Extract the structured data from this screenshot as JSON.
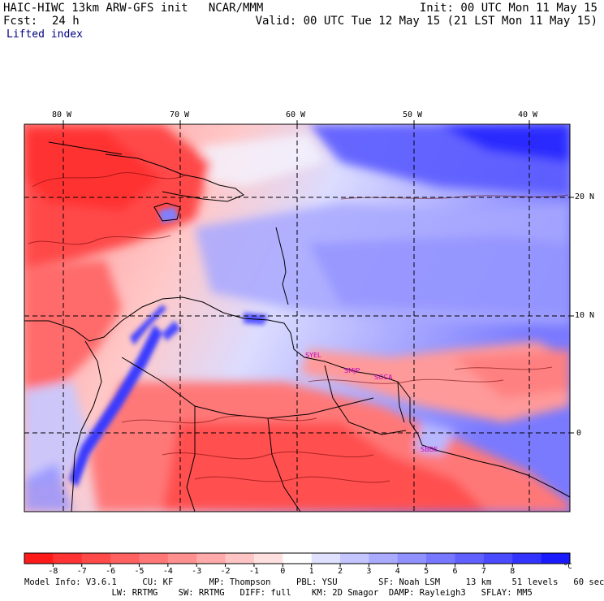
{
  "header": {
    "title_left": "HAIC-HIWC 13km ARW-GFS init   NCAR/MMM",
    "init": "Init: 00 UTC Mon 11 May 15",
    "fcst_label": "Fcst:",
    "fcst_value": "24 h",
    "valid": "Valid: 00 UTC Tue 12 May 15 (21 LST Mon 11 May 15)",
    "field": "Lifted index"
  },
  "map": {
    "longitude_labels": [
      "80 W",
      "70 W",
      "60 W",
      "50 W",
      "40 W"
    ],
    "latitude_labels": [
      "20 N",
      "10 N",
      "0"
    ],
    "stations": [
      "SYEL",
      "SMJP",
      "SOCA",
      "SBBE"
    ]
  },
  "colorbar": {
    "tick_labels": [
      "-8",
      "-7",
      "-6",
      "-5",
      "-4",
      "-3",
      "-2",
      "-1",
      "0",
      "1",
      "2",
      "3",
      "4",
      "5",
      "6",
      "7",
      "8"
    ],
    "unit": "°C",
    "colors": [
      "#ff1a1a",
      "#ff3333",
      "#ff4a4a",
      "#ff6060",
      "#ff7777",
      "#ff9090",
      "#ffaaaa",
      "#ffc4c4",
      "#ffe0e0",
      "#ffffff",
      "#e0e0ff",
      "#c4c4ff",
      "#aaaaff",
      "#9090ff",
      "#7777ff",
      "#6060ff",
      "#4a4aff",
      "#3333ff",
      "#1a1aff"
    ]
  },
  "footer": {
    "line1": "Model Info: V3.6.1     CU: KF       MP: Thompson     PBL: YSU        SF: Noah LSM     13 km    51 levels   60 sec",
    "line2": "                 LW: RRTMG    SW: RRTMG   DIFF: full    KM: 2D Smagor  DAMP: Rayleigh3   SFLAY: MM5"
  }
}
